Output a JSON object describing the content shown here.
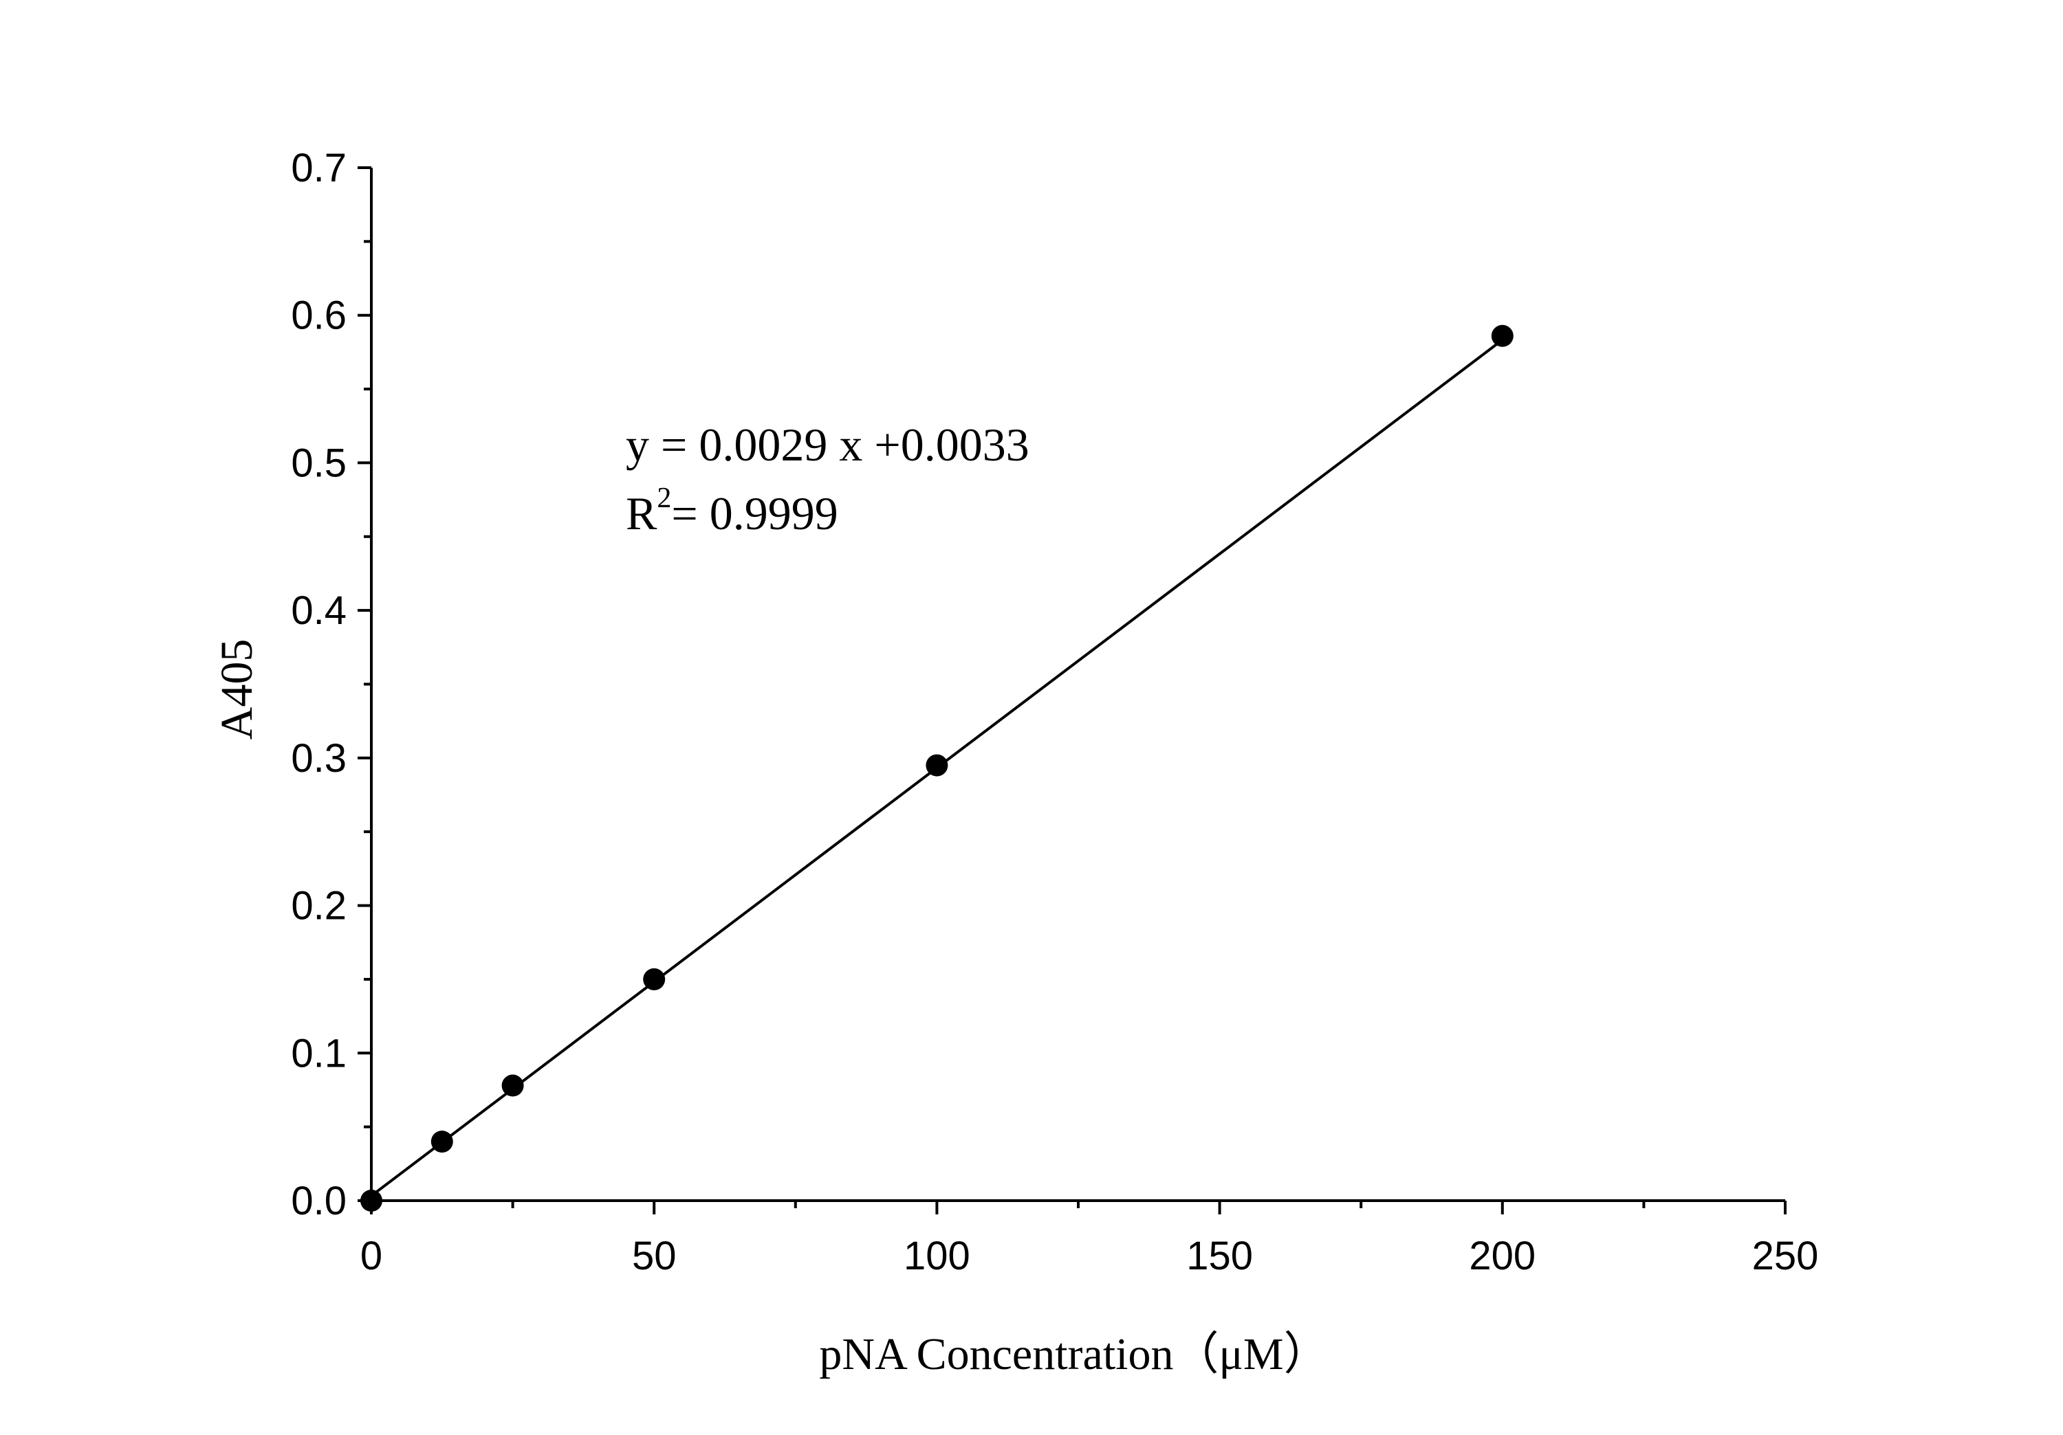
{
  "chart_data": {
    "type": "scatter",
    "title": "",
    "xlabel": "pNA Concentration（μM）",
    "ylabel": "A405",
    "xlim": [
      0,
      250
    ],
    "ylim": [
      0,
      0.7
    ],
    "x_ticks": [
      0,
      50,
      100,
      150,
      200,
      250
    ],
    "x_tick_labels": [
      "0",
      "50",
      "100",
      "150",
      "200",
      "250"
    ],
    "y_ticks": [
      0,
      0.1,
      0.2,
      0.3,
      0.4,
      0.5,
      0.6,
      0.7
    ],
    "y_tick_labels": [
      "0.0",
      "0.1",
      "0.2",
      "0.3",
      "0.4",
      "0.5",
      "0.6",
      "0.7"
    ],
    "grid": false,
    "legend": "none",
    "series": [
      {
        "x": [
          0,
          12.5,
          25,
          50,
          100,
          200
        ],
        "y": [
          0.0,
          0.04,
          0.078,
          0.15,
          0.295,
          0.586
        ],
        "marker_color": "#000000"
      }
    ],
    "fit_line": {
      "slope": 0.0029,
      "intercept": 0.0033,
      "x_range": [
        0,
        200
      ],
      "color": "#000000"
    },
    "annotations": {
      "equation": "y = 0.0029 x +0.0033",
      "r_squared_prefix": "R",
      "r_squared_sup": "2",
      "r_squared_suffix": "= 0.9999"
    }
  }
}
